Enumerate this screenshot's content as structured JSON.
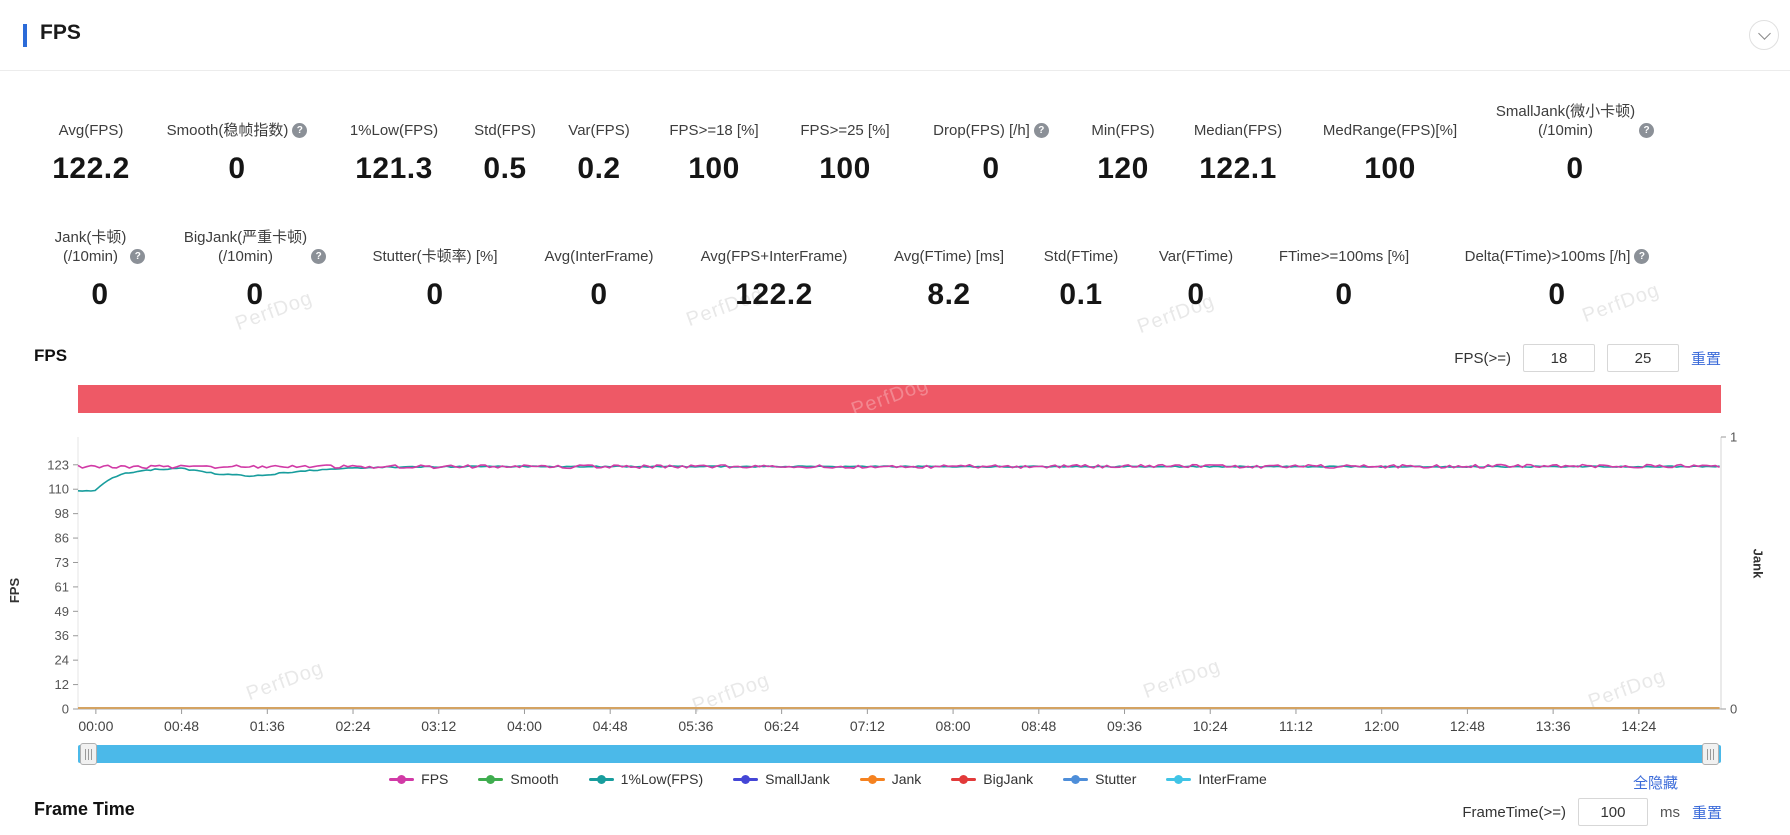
{
  "page": {
    "watermark": "PerfDog"
  },
  "header": {
    "title": "FPS"
  },
  "metrics_row1": [
    {
      "label": "Avg(FPS)",
      "value": "122.2"
    },
    {
      "label": "Smooth(稳帧指数)",
      "value": "0",
      "help": true
    },
    {
      "label": "1%Low(FPS)",
      "value": "121.3"
    },
    {
      "label": "Std(FPS)",
      "value": "0.5"
    },
    {
      "label": "Var(FPS)",
      "value": "0.2"
    },
    {
      "label": "FPS>=18 [%]",
      "value": "100"
    },
    {
      "label": "FPS>=25 [%]",
      "value": "100"
    },
    {
      "label": "Drop(FPS) [/h]",
      "value": "0",
      "help": true
    },
    {
      "label": "Min(FPS)",
      "value": "120"
    },
    {
      "label": "Median(FPS)",
      "value": "122.1"
    },
    {
      "label": "MedRange(FPS)[%]",
      "value": "100"
    },
    {
      "label": "SmallJank(微小卡顿)\n(/10min)",
      "value": "0",
      "help": true
    }
  ],
  "metrics_row2": [
    {
      "label": "Jank(卡顿)\n(/10min)",
      "value": "0",
      "help": true
    },
    {
      "label": "BigJank(严重卡顿)\n(/10min)",
      "value": "0",
      "help": true
    },
    {
      "label": "Stutter(卡顿率) [%]",
      "value": "0"
    },
    {
      "label": "Avg(InterFrame)",
      "value": "0"
    },
    {
      "label": "Avg(FPS+InterFrame)",
      "value": "122.2"
    },
    {
      "label": "Avg(FTime) [ms]",
      "value": "8.2"
    },
    {
      "label": "Std(FTime)",
      "value": "0.1"
    },
    {
      "label": "Var(FTime)",
      "value": "0"
    },
    {
      "label": "FTime>=100ms [%]",
      "value": "0"
    },
    {
      "label": "Delta(FTime)>100ms [/h]",
      "value": "0",
      "help": true
    }
  ],
  "fps_section": {
    "title": "FPS",
    "threshold_label": "FPS(>=)",
    "threshold_low": "18",
    "threshold_high": "25",
    "reset_label": "重置"
  },
  "frametime_section": {
    "title": "Frame Time",
    "threshold_label": "FrameTime(>=)",
    "threshold_value": "100",
    "unit": "ms",
    "reset_label": "重置"
  },
  "legend": {
    "items": [
      {
        "name": "FPS",
        "color": "#d13aa6"
      },
      {
        "name": "Smooth",
        "color": "#3fad4f"
      },
      {
        "name": "1%Low(FPS)",
        "color": "#189d9d"
      },
      {
        "name": "SmallJank",
        "color": "#4446d6"
      },
      {
        "name": "Jank",
        "color": "#f58220"
      },
      {
        "name": "BigJank",
        "color": "#e23a3a"
      },
      {
        "name": "Stutter",
        "color": "#4e8ed9"
      },
      {
        "name": "InterFrame",
        "color": "#40c4e6"
      }
    ],
    "hide_all_label": "全隐藏"
  },
  "chart_data": {
    "type": "line",
    "title": "FPS",
    "band_color": "#ee5966",
    "duration_s": 920,
    "x_ticks": [
      "00:00",
      "00:48",
      "01:36",
      "02:24",
      "03:12",
      "04:00",
      "04:48",
      "05:36",
      "06:24",
      "07:12",
      "08:00",
      "08:48",
      "09:36",
      "10:24",
      "11:12",
      "12:00",
      "12:48",
      "13:36",
      "14:24"
    ],
    "y_left": {
      "label": "FPS",
      "ticks": [
        "0",
        "12",
        "24",
        "36",
        "49",
        "61",
        "73",
        "86",
        "98",
        "110",
        "123"
      ],
      "axis_max": 137
    },
    "y_right": {
      "label": "Jank",
      "ticks": [
        "1",
        "0"
      ],
      "range": [
        0,
        1
      ]
    },
    "series": [
      {
        "name": "Jank",
        "color": "#d4a362",
        "width": 2,
        "jitter": 0,
        "seed": 3,
        "keypoints": [
          [
            0,
            0.4
          ],
          [
            920,
            0.4
          ]
        ]
      },
      {
        "name": "1%Low(FPS)",
        "color": "#189d9d",
        "width": 1.6,
        "jitter": 0.3,
        "seed": 7,
        "keypoints": [
          [
            0,
            110
          ],
          [
            6,
            115
          ],
          [
            16,
            118.6
          ],
          [
            32,
            120.6
          ],
          [
            48,
            121.2
          ],
          [
            68,
            118.4
          ],
          [
            88,
            117.2
          ],
          [
            108,
            119.2
          ],
          [
            132,
            121
          ],
          [
            160,
            121.8
          ],
          [
            200,
            122.1
          ],
          [
            920,
            122.1
          ]
        ]
      },
      {
        "name": "FPS",
        "color": "#d13aa6",
        "width": 1.6,
        "jitter": 0.85,
        "seed": 11,
        "keypoints": [
          [
            0,
            122.0
          ],
          [
            920,
            122.3
          ]
        ]
      }
    ]
  }
}
